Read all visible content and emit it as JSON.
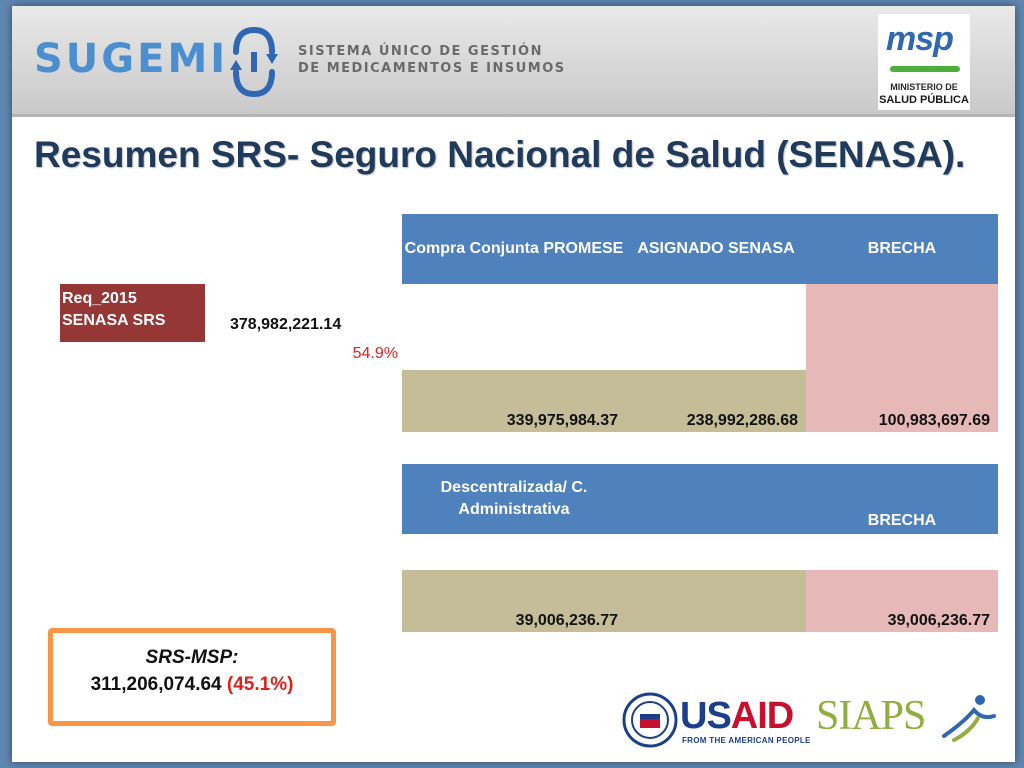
{
  "header": {
    "brand": "SUGEMI",
    "tagline_line1": "SISTEMA ÚNICO DE GESTIÓN",
    "tagline_line2": "DE MEDICAMENTOS E INSUMOS",
    "msp_logo": {
      "mark": "msp",
      "line1": "MINISTERIO DE",
      "line2": "SALUD PÚBLICA"
    }
  },
  "title": "Resumen SRS- Seguro Nacional de Salud (SENASA).",
  "requirement": {
    "label_line1": "Req_2015",
    "label_line2": "SENASA SRS",
    "value": "378,982,221.14",
    "percent": "54.9%"
  },
  "table1": {
    "headers": {
      "compra": "Compra Conjunta PROMESE",
      "asignado": "ASIGNADO SENASA",
      "brecha": "BRECHA"
    },
    "values": {
      "compra": "339,975,984.37",
      "asignado": "238,992,286.68",
      "brecha": "100,983,697.69"
    }
  },
  "table2": {
    "headers": {
      "descentralizada": "Descentralizada/ C. Administrativa",
      "brecha": "BRECHA"
    },
    "values": {
      "descentralizada": "39,006,236.77",
      "brecha": "39,006,236.77"
    }
  },
  "summary": {
    "label": "SRS-MSP:",
    "value": "311,206,074.64",
    "percent": "(45.1%)"
  },
  "footer": {
    "usaid_us": "US",
    "usaid_aid": "AID",
    "usaid_tagline": "FROM THE AMERICAN PEOPLE",
    "siaps": "SIAPS"
  },
  "colors": {
    "header_blue": "#4f81bd",
    "tan": "#c4bd97",
    "pink": "#e6b9b8",
    "req_red": "#953735",
    "accent_red": "#e0201b",
    "summary_border": "#f79646"
  }
}
